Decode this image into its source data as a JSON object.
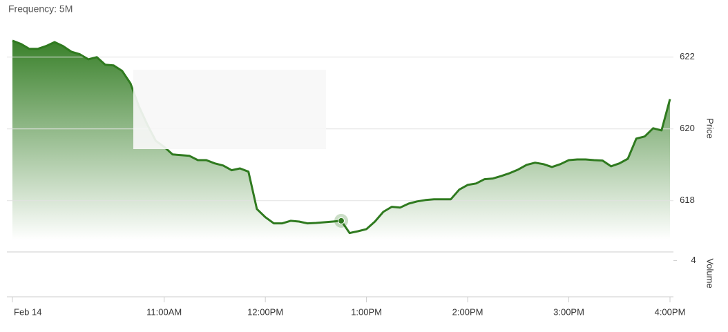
{
  "chart_data": {
    "type": "area",
    "title": "Frequency: 5M",
    "ylabel": "Price",
    "categories": [
      "Feb 14",
      null,
      null,
      null,
      null,
      null,
      null,
      null,
      null,
      null,
      null,
      null,
      null,
      null,
      null,
      null,
      null,
      null,
      "11:00AM",
      null,
      null,
      null,
      null,
      null,
      null,
      null,
      null,
      null,
      null,
      null,
      "12:00PM",
      null,
      null,
      null,
      null,
      null,
      null,
      null,
      null,
      null,
      null,
      null,
      "1:00PM",
      null,
      null,
      null,
      null,
      null,
      null,
      null,
      null,
      null,
      null,
      null,
      "2:00PM",
      null,
      null,
      null,
      null,
      null,
      null,
      null,
      null,
      null,
      null,
      null,
      "3:00PM",
      null,
      null,
      null,
      null,
      null,
      null,
      null,
      null,
      null,
      null,
      null,
      "4:00PM"
    ],
    "series": [
      {
        "color": "#2f7a1f",
        "values": [
          622.46,
          622.37,
          622.23,
          622.23,
          622.31,
          622.42,
          622.31,
          622.15,
          622.08,
          621.94,
          622.0,
          621.79,
          621.77,
          621.62,
          621.27,
          620.63,
          620.12,
          619.67,
          619.5,
          619.29,
          619.27,
          619.25,
          619.13,
          619.13,
          619.04,
          618.98,
          618.85,
          618.9,
          618.81,
          617.77,
          617.54,
          617.37,
          617.37,
          617.44,
          617.42,
          617.37,
          617.38,
          617.4,
          617.42,
          617.44,
          617.1,
          617.15,
          617.21,
          617.42,
          617.69,
          617.83,
          617.81,
          617.92,
          617.98,
          618.02,
          618.04,
          618.04,
          618.04,
          618.31,
          618.44,
          618.48,
          618.6,
          618.62,
          618.69,
          618.77,
          618.87,
          619.0,
          619.06,
          619.02,
          618.94,
          619.02,
          619.13,
          619.15,
          619.15,
          619.13,
          619.12,
          618.96,
          619.04,
          619.17,
          619.73,
          619.79,
          620.02,
          619.96,
          620.83
        ]
      }
    ],
    "ylim": [
      616.9,
      622.9
    ],
    "yticks": [
      618,
      620,
      622
    ],
    "grid": true,
    "volume": {
      "ylabel": "Volume",
      "ylim": [
        0,
        5
      ],
      "yticks": [
        4
      ]
    }
  }
}
